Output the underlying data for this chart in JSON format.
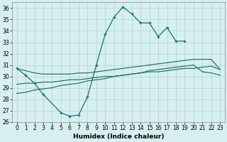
{
  "xlabel": "Humidex (Indice chaleur)",
  "color": "#1a7070",
  "bg_color": "#d8efef",
  "grid_color": "#aad4d4",
  "ylim": [
    26,
    36.5
  ],
  "xlim": [
    -0.5,
    23.5
  ],
  "yticks": [
    26,
    27,
    28,
    29,
    30,
    31,
    32,
    33,
    34,
    35,
    36
  ],
  "xticks": [
    0,
    1,
    2,
    3,
    4,
    5,
    6,
    7,
    8,
    9,
    10,
    11,
    12,
    13,
    14,
    15,
    16,
    17,
    18,
    19,
    20,
    21,
    22,
    23
  ],
  "peak_x": [
    0,
    1,
    2,
    3,
    5,
    6,
    7,
    8,
    9,
    10,
    11,
    12,
    13,
    14,
    15,
    16,
    17,
    18,
    19
  ],
  "peak_y": [
    30.7,
    30.1,
    29.4,
    28.4,
    26.8,
    26.5,
    26.6,
    28.2,
    31.0,
    33.7,
    35.2,
    36.1,
    35.5,
    34.7,
    34.7,
    33.5,
    34.3,
    33.1,
    33.1
  ],
  "upper_x": [
    0,
    1,
    2,
    3,
    4,
    5,
    6,
    7,
    8,
    9,
    10,
    11,
    12,
    13,
    14,
    15,
    16,
    17,
    18,
    19,
    20,
    21,
    22,
    23
  ],
  "upper_y": [
    30.7,
    30.5,
    30.3,
    30.2,
    30.2,
    30.2,
    30.2,
    30.3,
    30.3,
    30.4,
    30.5,
    30.6,
    30.7,
    30.8,
    30.9,
    31.0,
    31.1,
    31.2,
    31.3,
    31.4,
    31.5,
    31.5,
    31.5,
    30.6
  ],
  "mid_x": [
    0,
    1,
    2,
    3,
    4,
    5,
    6,
    7,
    8,
    9,
    10,
    11,
    12,
    13,
    14,
    15,
    16,
    17,
    18,
    19,
    20,
    21,
    22,
    23
  ],
  "mid_y": [
    29.3,
    29.4,
    29.4,
    29.5,
    29.5,
    29.6,
    29.7,
    29.7,
    29.8,
    29.9,
    30.0,
    30.0,
    30.1,
    30.2,
    30.3,
    30.4,
    30.4,
    30.5,
    30.6,
    30.7,
    30.7,
    30.8,
    30.9,
    30.6
  ],
  "low_x": [
    0,
    1,
    2,
    3,
    4,
    5,
    6,
    7,
    8,
    9,
    10,
    11,
    12,
    13,
    14,
    15,
    16,
    17,
    18,
    19,
    20,
    21,
    22,
    23
  ],
  "low_y": [
    28.5,
    28.6,
    28.8,
    28.9,
    29.0,
    29.2,
    29.3,
    29.4,
    29.6,
    29.7,
    29.8,
    30.0,
    30.1,
    30.2,
    30.3,
    30.5,
    30.6,
    30.7,
    30.8,
    30.9,
    31.0,
    30.4,
    30.3,
    30.1
  ]
}
